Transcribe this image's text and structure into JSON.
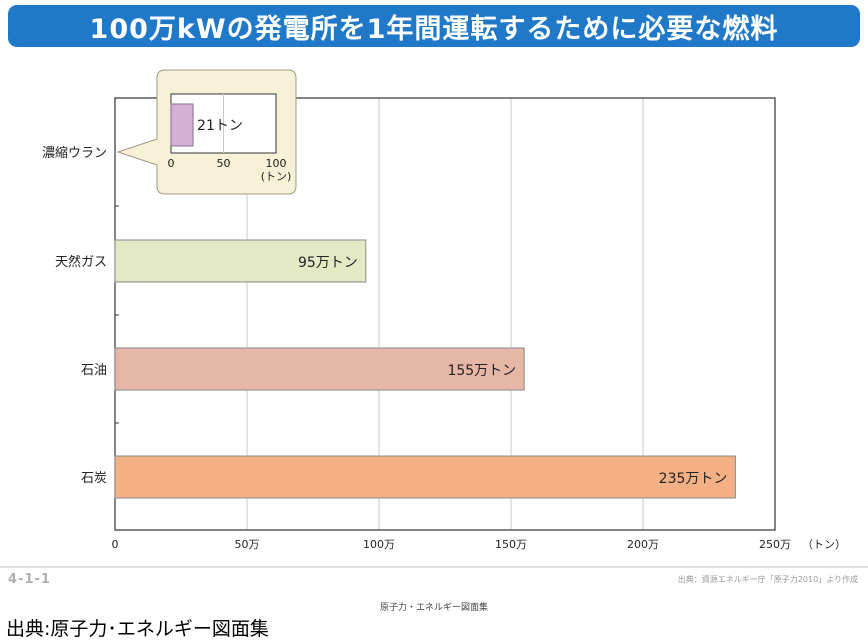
{
  "title": "100万kWの発電所を1年間運転するために必要な燃料",
  "page_number": "4-1-1",
  "source_note": "出典：資源エネルギー庁「原子力2010」より作成",
  "collection_title": "原子力・エネルギー図面集",
  "source_caption": "出典:原子力･エネルギー図面集",
  "colors": {
    "title_bg": "#1f78c8",
    "uranium": "#d4b0d8",
    "gas": "#e3e8c5",
    "oil": "#e6b6a6",
    "coal": "#f2b084",
    "inset_bg": "#f6f1d6"
  },
  "chart_data": [
    {
      "type": "bar",
      "orientation": "horizontal",
      "categories": [
        "濃縮ウラン",
        "天然ガス",
        "石油",
        "石炭"
      ],
      "values": [
        null,
        95,
        155,
        235
      ],
      "value_labels": [
        "",
        "95万トン",
        "155万トン",
        "235万トン"
      ],
      "bar_colors": [
        "#d4b0d8",
        "#e3e8c5",
        "#e6b6a6",
        "#f2b084"
      ],
      "xlim": [
        0,
        250
      ],
      "xticks": [
        0,
        50,
        100,
        150,
        200,
        250
      ],
      "xtick_labels": [
        "0",
        "50万",
        "100万",
        "150万",
        "200万",
        "250万"
      ],
      "xunit": "（トン）",
      "grid": true
    },
    {
      "type": "bar",
      "orientation": "horizontal",
      "categories": [
        "濃縮ウラン"
      ],
      "values": [
        21
      ],
      "value_labels": [
        "21トン"
      ],
      "xlim": [
        0,
        100
      ],
      "xticks": [
        0,
        50,
        100
      ],
      "xtick_labels": [
        "0",
        "50",
        "100"
      ],
      "xunit": "(トン)"
    }
  ]
}
